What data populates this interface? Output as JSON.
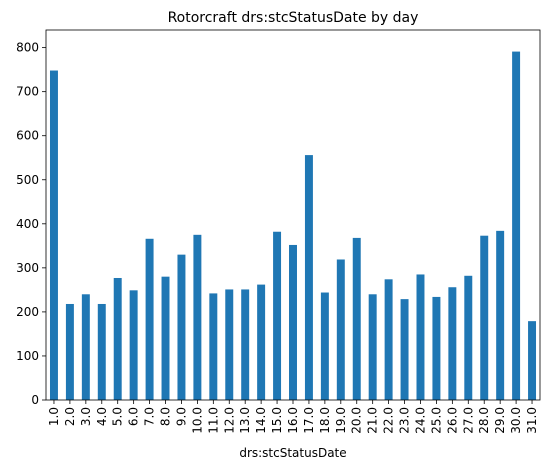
{
  "chart_data": {
    "type": "bar",
    "title": "Rotorcraft  drs:stcStatusDate by day",
    "xlabel": "drs:stcStatusDate",
    "ylabel": "",
    "ylim": [
      0,
      840
    ],
    "yticks": [
      0,
      100,
      200,
      300,
      400,
      500,
      600,
      700,
      800
    ],
    "grid": false,
    "color": "#1f77b4",
    "categories": [
      "1.0",
      "2.0",
      "3.0",
      "4.0",
      "5.0",
      "6.0",
      "7.0",
      "8.0",
      "9.0",
      "10.0",
      "11.0",
      "12.0",
      "13.0",
      "14.0",
      "15.0",
      "16.0",
      "17.0",
      "18.0",
      "19.0",
      "20.0",
      "21.0",
      "22.0",
      "23.0",
      "24.0",
      "25.0",
      "26.0",
      "27.0",
      "28.0",
      "29.0",
      "30.0",
      "31.0"
    ],
    "values": [
      748,
      218,
      240,
      218,
      277,
      249,
      366,
      280,
      330,
      375,
      242,
      251,
      251,
      262,
      382,
      352,
      556,
      244,
      319,
      368,
      240,
      274,
      229,
      285,
      234,
      256,
      282,
      373,
      384,
      791,
      179
    ]
  }
}
